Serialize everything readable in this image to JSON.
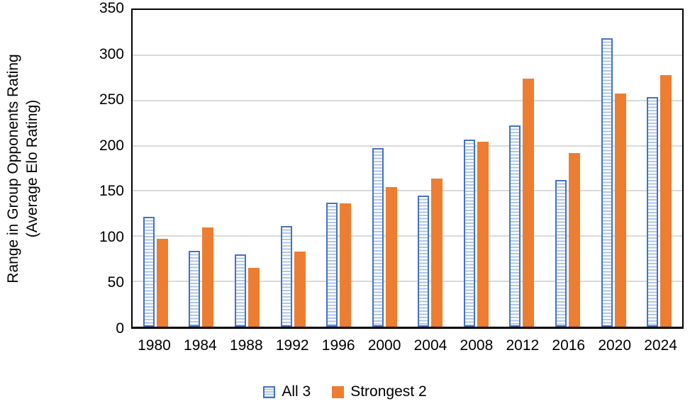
{
  "chart_data": {
    "type": "bar",
    "title": "",
    "ylabel_line1": "Range in Group Opponents Rating",
    "ylabel_line2": "(Average Elo Rating)",
    "xlabel": "",
    "categories": [
      "1980",
      "1984",
      "1988",
      "1992",
      "1996",
      "2000",
      "2004",
      "2008",
      "2012",
      "2016",
      "2020",
      "2024"
    ],
    "series": [
      {
        "name": "All 3",
        "values": [
          121,
          84,
          80,
          111,
          137,
          197,
          145,
          207,
          222,
          162,
          319,
          254
        ],
        "style": "hatched-horizontal",
        "border_color": "#4472C4",
        "stripe_color": "#AEC6E8",
        "fill_color": "#FFFFFF"
      },
      {
        "name": "Strongest 2",
        "values": [
          97,
          110,
          65,
          83,
          136,
          154,
          164,
          204,
          274,
          192,
          258,
          278
        ],
        "style": "solid",
        "fill_color": "#ED7D31"
      }
    ],
    "ylim": [
      0,
      350
    ],
    "yticks": [
      0,
      50,
      100,
      150,
      200,
      250,
      300,
      350
    ],
    "grid": "horizontal",
    "gridline_color": "#D9D9D9",
    "axis_color": "#000000",
    "text_color": "#000000",
    "legend_position": "bottom"
  }
}
